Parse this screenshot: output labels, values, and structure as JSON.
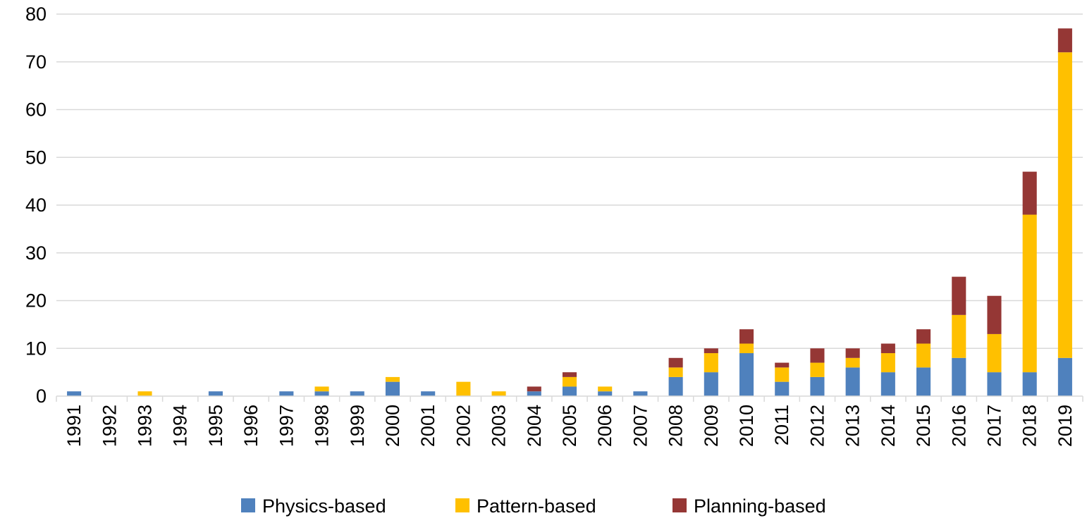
{
  "chart_data": {
    "type": "bar",
    "stacked": true,
    "categories": [
      "1991",
      "1992",
      "1993",
      "1994",
      "1995",
      "1996",
      "1997",
      "1998",
      "1999",
      "2000",
      "2001",
      "2002",
      "2003",
      "2004",
      "2005",
      "2006",
      "2007",
      "2008",
      "2009",
      "2010",
      "2011",
      "2012",
      "2013",
      "2014",
      "2015",
      "2016",
      "2017",
      "2018",
      "2019"
    ],
    "series": [
      {
        "name": "Physics-based",
        "color": "#4f81bd",
        "values": [
          1,
          0,
          0,
          0,
          1,
          0,
          1,
          1,
          1,
          3,
          1,
          0,
          0,
          1,
          2,
          1,
          1,
          4,
          5,
          9,
          3,
          4,
          6,
          5,
          6,
          8,
          5,
          5,
          8
        ]
      },
      {
        "name": "Pattern-based",
        "color": "#ffc000",
        "values": [
          0,
          0,
          1,
          0,
          0,
          0,
          0,
          1,
          0,
          1,
          0,
          3,
          1,
          0,
          2,
          1,
          0,
          2,
          4,
          2,
          3,
          3,
          2,
          4,
          5,
          9,
          8,
          33,
          64
        ]
      },
      {
        "name": "Planning-based",
        "color": "#953735",
        "values": [
          0,
          0,
          0,
          0,
          0,
          0,
          0,
          0,
          0,
          0,
          0,
          0,
          0,
          1,
          1,
          0,
          0,
          2,
          1,
          3,
          1,
          3,
          2,
          2,
          3,
          8,
          8,
          9,
          5
        ]
      }
    ],
    "title": "",
    "xlabel": "",
    "ylabel": "",
    "ylim": [
      0,
      80
    ],
    "yticks": [
      "0",
      "10",
      "20",
      "30",
      "40",
      "50",
      "60",
      "70",
      "80"
    ],
    "grid": true,
    "legend_position": "bottom"
  }
}
